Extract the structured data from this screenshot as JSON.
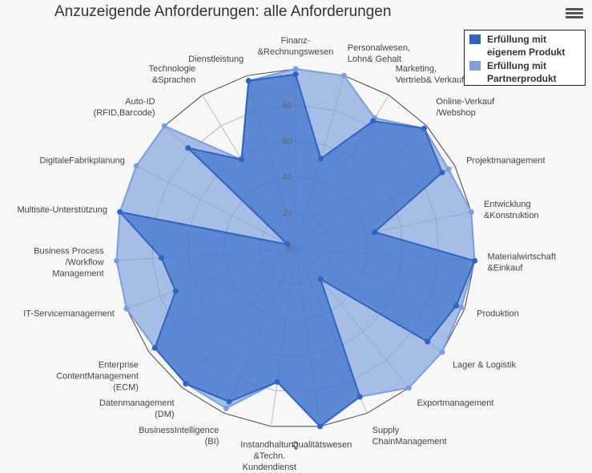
{
  "title": "Anzuzeigende Anforderungen: alle Anforderungen",
  "menu_icon": "hamburger-menu-icon",
  "chart_data": {
    "type": "radar",
    "title": "Anzuzeigende Anforderungen: alle Anforderungen",
    "categories": [
      "Finanz- &Rechnungswesen",
      "Personalwesen, Lohn& Gehalt",
      "Marketing, Vertrieb& Verkauf",
      "Online-Verkauf /Webshop",
      "Projektmanagement",
      "Entwicklung &Konstruktion",
      "Materialwirtschaft &Einkauf",
      "Produktion",
      "Lager & Logistik",
      "Exportmanagement",
      "Supply ChainManagement",
      "Qualitätswesen",
      "Instandhaltung &Techn. Kundendienst",
      "BusinessIntelligence (BI)",
      "Datenmanagement (DM)",
      "Enterprise ContentManagement (ECM)",
      "IT-Servicemanagement",
      "Business Process /Workflow Management",
      "Multisite-Unterstützung",
      "DigitaleFabrikplanung",
      "Auto-ID (RFID,Barcode)",
      "Technologie &Sprachen",
      "Dienstleistung"
    ],
    "series": [
      {
        "name": "Erfüllung mit eigenem Produkt",
        "color": "#2f64c4",
        "values": [
          97,
          52,
          83,
          98,
          92,
          45,
          100,
          95,
          90,
          22,
          90,
          100,
          75,
          93,
          97,
          96,
          71,
          75,
          100,
          5,
          82,
          58,
          97
        ]
      },
      {
        "name": "Erfüllung mit Partnerprodukt",
        "color": "#7b9fdc",
        "values": [
          100,
          100,
          85,
          98,
          96,
          100,
          100,
          98,
          100,
          100,
          90,
          100,
          75,
          97,
          97,
          96,
          100,
          100,
          100,
          100,
          100,
          58,
          97
        ]
      }
    ],
    "ylim": [
      0,
      100
    ],
    "yticks": [
      0,
      20,
      40,
      60,
      80
    ],
    "grid": true,
    "gridline_shape": "polygon",
    "legend_position": "top-right"
  }
}
